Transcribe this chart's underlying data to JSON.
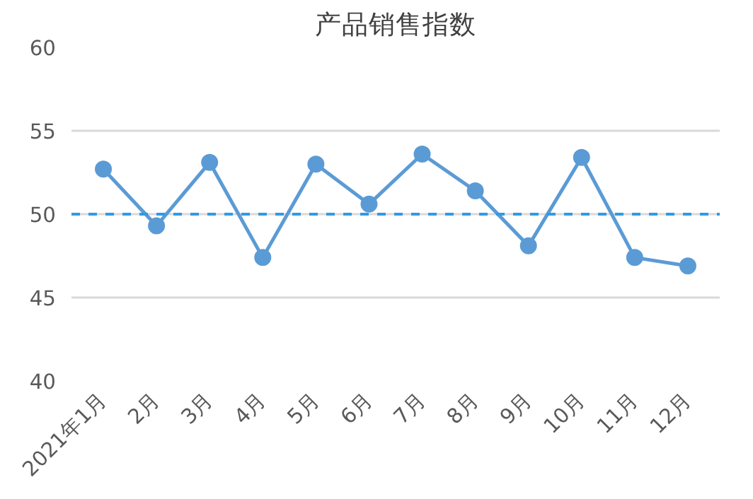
{
  "chart_data": {
    "type": "line",
    "title": "产品销售指数",
    "categories": [
      "2021年1月",
      "2月",
      "3月",
      "4月",
      "5月",
      "6月",
      "7月",
      "8月",
      "9月",
      "10月",
      "11月",
      "12月"
    ],
    "series": [
      {
        "color": "#5b9bd5",
        "values": [
          52.7,
          49.3,
          53.1,
          47.4,
          53.0,
          50.6,
          53.6,
          51.4,
          48.1,
          53.4,
          47.4,
          46.9
        ]
      }
    ],
    "ylim": [
      40,
      60
    ],
    "yticks": [
      40,
      45,
      50,
      55,
      60
    ],
    "grid": "y",
    "marker": "circle",
    "line_style": "solid",
    "ref_lines": [
      {
        "axis": "y",
        "value": 50,
        "color": "#2e9be6",
        "line_style": "dashed"
      }
    ]
  }
}
